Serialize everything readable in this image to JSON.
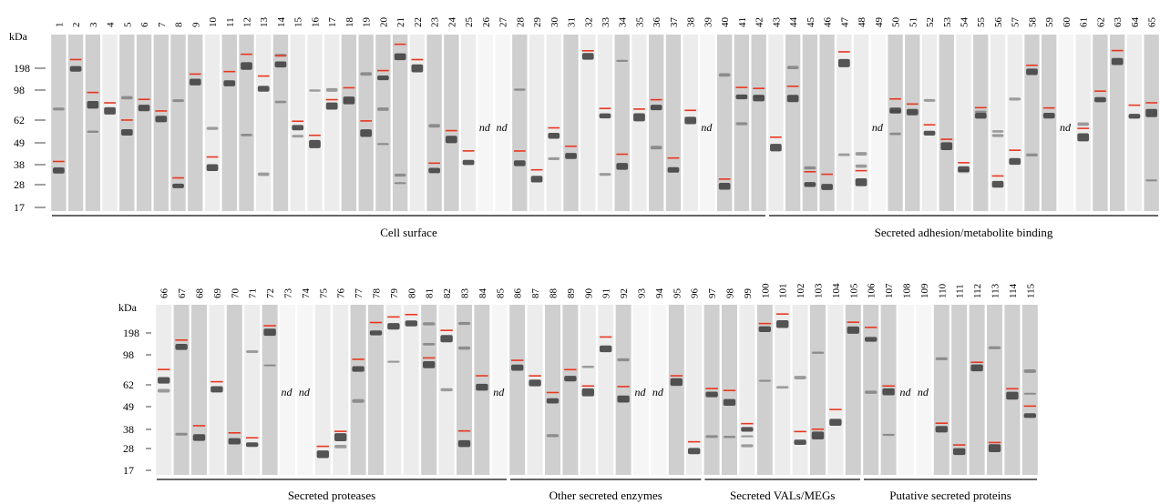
{
  "kda_label": "kDa",
  "marker_labels": [
    "198",
    "98",
    "62",
    "49",
    "38",
    "28",
    "17"
  ],
  "nd_label": "nd",
  "colors": {
    "lane_dark": "#cfcfcf",
    "lane_light": "#ececec",
    "band": "#3a3a3a",
    "marker_line": "#e8371f",
    "rule": "#333333"
  },
  "panel_top": {
    "lanes": [
      "1",
      "2",
      "3",
      "4",
      "5",
      "6",
      "7",
      "8",
      "9",
      "10",
      "11",
      "12",
      "13",
      "14",
      "15",
      "16",
      "17",
      "18",
      "19",
      "20",
      "21",
      "22",
      "23",
      "24",
      "25",
      "26",
      "27",
      "28",
      "29",
      "30",
      "31",
      "32",
      "33",
      "34",
      "35",
      "36",
      "37",
      "38",
      "39",
      "40",
      "41",
      "42",
      "43",
      "44",
      "45",
      "46",
      "47",
      "48",
      "49",
      "50",
      "51",
      "52",
      "53",
      "54",
      "55",
      "56",
      "57",
      "58",
      "59",
      "60",
      "61",
      "62",
      "63",
      "64",
      "65"
    ],
    "nd_lanes": [
      "26",
      "27",
      "39",
      "49",
      "60"
    ],
    "groups": [
      {
        "label": "Cell surface",
        "first_lane": "1",
        "last_lane": "42"
      },
      {
        "label": "Secreted adhesion/metabolite binding",
        "first_lane": "43",
        "last_lane": "65"
      }
    ]
  },
  "panel_bottom": {
    "lanes": [
      "66",
      "67",
      "68",
      "69",
      "70",
      "71",
      "72",
      "73",
      "74",
      "75",
      "76",
      "77",
      "78",
      "79",
      "80",
      "81",
      "82",
      "83",
      "84",
      "85",
      "86",
      "87",
      "88",
      "89",
      "90",
      "91",
      "92",
      "93",
      "94",
      "95",
      "96",
      "97",
      "98",
      "99",
      "100",
      "101",
      "102",
      "103",
      "104",
      "105",
      "106",
      "107",
      "108",
      "109",
      "110",
      "111",
      "112",
      "113",
      "114",
      "115"
    ],
    "nd_lanes": [
      "73",
      "74",
      "85",
      "93",
      "94",
      "108",
      "109"
    ],
    "groups": [
      {
        "label": "Secreted proteases",
        "first_lane": "66",
        "last_lane": "85"
      },
      {
        "label": "Other secreted enzymes",
        "first_lane": "86",
        "last_lane": "96"
      },
      {
        "label": "Secreted VALs/MEGs",
        "first_lane": "97",
        "last_lane": "105"
      },
      {
        "label": "Putative secreted proteins",
        "first_lane": "106",
        "last_lane": "115"
      }
    ]
  }
}
